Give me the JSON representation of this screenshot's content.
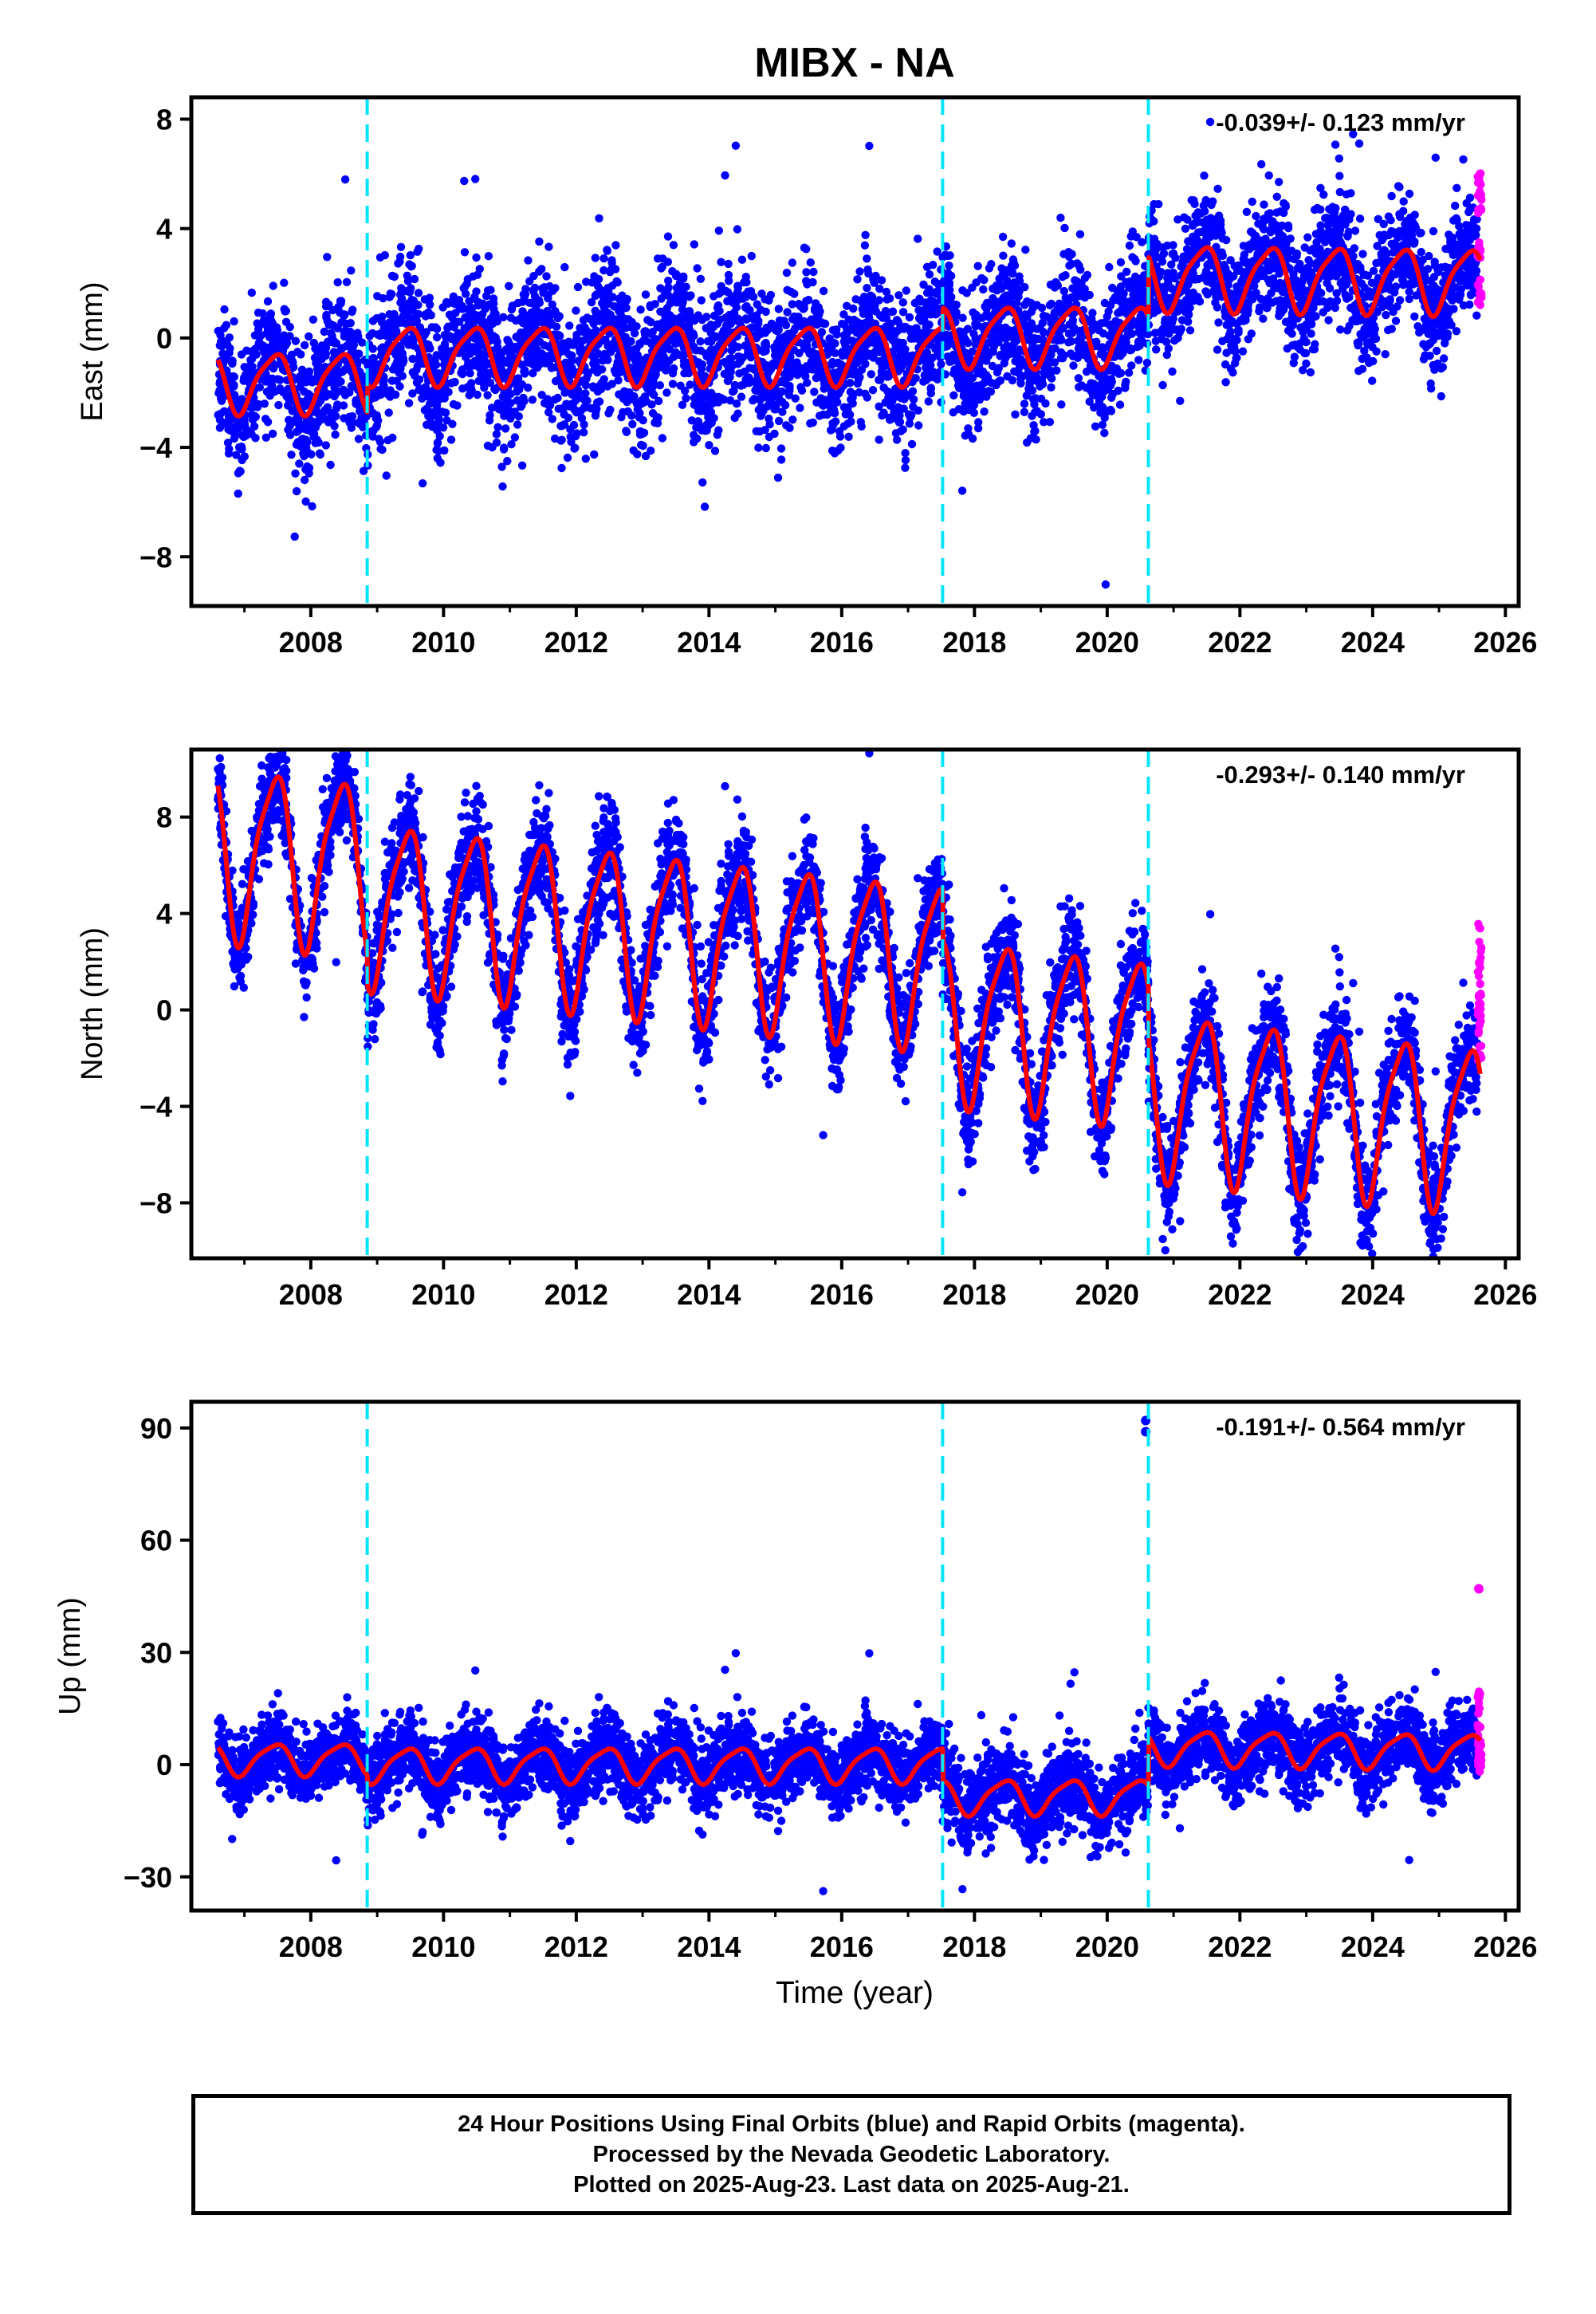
{
  "figure": {
    "title": "MIBX - NA",
    "xlabel": "Time (year)",
    "colors": {
      "final": "#0000ff",
      "rapid": "#ff00ff",
      "model": "#ff0000",
      "step": "#00e5ff",
      "axis": "#000000"
    }
  },
  "chart_data": [
    {
      "type": "scatter",
      "ylabel": "East (mm)",
      "rate_label": "-0.039+/- 0.123 mm/yr",
      "xlim": [
        2006.2,
        2026.2
      ],
      "ylim": [
        -9.8,
        8.8
      ],
      "xticks": [
        "2008",
        "2010",
        "2012",
        "2014",
        "2016",
        "2018",
        "2020",
        "2022",
        "2024",
        "2026"
      ],
      "yticks": [
        "8",
        "4",
        "0",
        "-4",
        "-8"
      ],
      "ytick_values": [
        8,
        4,
        0,
        -4,
        -8
      ],
      "step_years": [
        2008.85,
        2017.52,
        2020.62
      ],
      "series": [
        {
          "name": "",
          "role": "final",
          "segments": [
            {
              "start": 2006.6,
              "end": 2008.85,
              "offset": -1.6,
              "trend": 0.0,
              "amp": 1.3,
              "noise": 1.1
            },
            {
              "start": 2008.85,
              "end": 2017.52,
              "offset": -0.6,
              "trend": 0.0,
              "amp": 1.25,
              "noise": 1.3
            },
            {
              "start": 2017.52,
              "end": 2020.62,
              "offset": 0.1,
              "trend": 0.0,
              "amp": 1.3,
              "noise": 1.2
            },
            {
              "start": 2020.62,
              "end": 2025.58,
              "offset": 2.4,
              "trend": -0.03,
              "amp": 1.4,
              "noise": 1.1
            }
          ]
        },
        {
          "name": "",
          "role": "rapid",
          "x_range": [
            2025.58,
            2025.64
          ],
          "y_center": 3.5,
          "spread": 2.6,
          "count": 40
        },
        {
          "name": "",
          "role": "model"
        }
      ]
    },
    {
      "type": "scatter",
      "ylabel": "North (mm)",
      "rate_label": "-0.293+/- 0.140 mm/yr",
      "xlim": [
        2006.2,
        2026.2
      ],
      "ylim": [
        -10.3,
        10.8
      ],
      "xticks": [
        "2008",
        "2010",
        "2012",
        "2014",
        "2016",
        "2018",
        "2020",
        "2022",
        "2024",
        "2026"
      ],
      "yticks": [
        "8",
        "4",
        "0",
        "-4",
        "-8"
      ],
      "ytick_values": [
        8,
        4,
        0,
        -4,
        -8
      ],
      "step_years": [
        2008.85,
        2017.52,
        2020.62
      ],
      "series": [
        {
          "name": "",
          "role": "final",
          "segments": [
            {
              "start": 2006.6,
              "end": 2008.85,
              "offset": 3.9,
              "trend": -0.3,
              "amp": 4.2,
              "noise": 1.0
            },
            {
              "start": 2008.85,
              "end": 2017.52,
              "offset": 2.4,
              "trend": -0.3,
              "amp": 4.0,
              "noise": 1.1
            },
            {
              "start": 2017.52,
              "end": 2020.62,
              "offset": 0.2,
              "trend": -0.3,
              "amp": 4.0,
              "noise": 1.1
            },
            {
              "start": 2020.62,
              "end": 2025.58,
              "offset": -2.0,
              "trend": -0.29,
              "amp": 4.0,
              "noise": 1.1
            }
          ]
        },
        {
          "name": "",
          "role": "rapid",
          "x_range": [
            2025.58,
            2025.64
          ],
          "y_center": 0.8,
          "spread": 3.0,
          "count": 40
        },
        {
          "name": "",
          "role": "model"
        }
      ]
    },
    {
      "type": "scatter",
      "ylabel": "Up (mm)",
      "rate_label": "-0.191+/- 0.564 mm/yr",
      "xlim": [
        2006.2,
        2026.2
      ],
      "ylim": [
        -39,
        97
      ],
      "xticks": [
        "2008",
        "2010",
        "2012",
        "2014",
        "2016",
        "2018",
        "2020",
        "2022",
        "2024",
        "2026"
      ],
      "yticks": [
        "90",
        "60",
        "30",
        "0",
        "-30"
      ],
      "ytick_values": [
        90,
        60,
        30,
        0,
        -30
      ],
      "step_years": [
        2008.85,
        2017.52,
        2020.62
      ],
      "series": [
        {
          "name": "",
          "role": "final",
          "segments": [
            {
              "start": 2006.6,
              "end": 2008.85,
              "offset": 1.5,
              "trend": 0.0,
              "amp": 5.0,
              "noise": 4.5
            },
            {
              "start": 2008.85,
              "end": 2017.52,
              "offset": 0.0,
              "trend": 0.0,
              "amp": 5.5,
              "noise": 5.0
            },
            {
              "start": 2017.52,
              "end": 2020.62,
              "offset": -8.5,
              "trend": 0.0,
              "amp": 5.5,
              "noise": 5.5
            },
            {
              "start": 2020.62,
              "end": 2025.58,
              "offset": 5.5,
              "trend": -0.2,
              "amp": 5.5,
              "noise": 5.0
            }
          ]
        },
        {
          "name": "",
          "role": "rapid",
          "x_range": [
            2025.58,
            2025.64
          ],
          "y_center": 9,
          "spread": 11,
          "count": 40
        },
        {
          "name": "",
          "role": "model"
        }
      ],
      "outliers": [
        {
          "x": 2020.58,
          "y": 92
        },
        {
          "x": 2020.58,
          "y": 89
        },
        {
          "x": 2025.6,
          "y": 47
        }
      ]
    }
  ],
  "caption": {
    "line1": "24 Hour Positions Using Final Orbits (blue) and Rapid Orbits (magenta).",
    "line2": "Processed by the Nevada Geodetic Laboratory.",
    "line3": "Plotted on 2025-Aug-23. Last data on 2025-Aug-21."
  }
}
